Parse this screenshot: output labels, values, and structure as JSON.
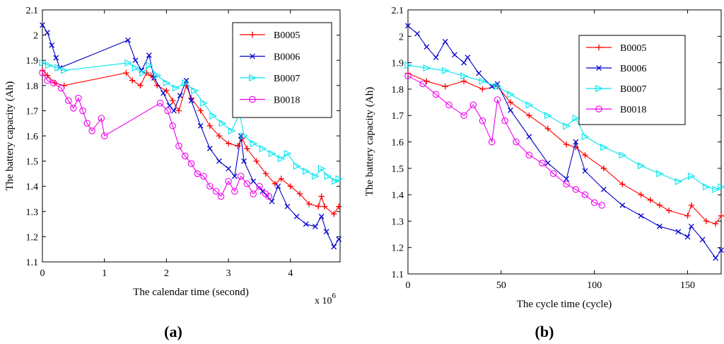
{
  "chart_data": [
    {
      "id": "a",
      "type": "line",
      "panel_label": "a",
      "xlabel": "The calendar time (second)",
      "ylabel": "The battery capacity (Ah)",
      "x_multiplier": "x 10",
      "x_multiplier_exp": "6",
      "xlim": [
        0,
        4.8
      ],
      "ylim": [
        1.1,
        2.1
      ],
      "xticks": [
        "0",
        "1",
        "2",
        "3",
        "4"
      ],
      "xtick_values": [
        0,
        1,
        2,
        3,
        4
      ],
      "yticks": [
        "1.1",
        "1.2",
        "1.3",
        "1.4",
        "1.5",
        "1.6",
        "1.7",
        "1.8",
        "1.9",
        "2",
        "2.1"
      ],
      "ytick_values": [
        1.1,
        1.2,
        1.3,
        1.4,
        1.5,
        1.6,
        1.7,
        1.8,
        1.9,
        2.0,
        2.1
      ],
      "legend_position": "top-right",
      "series": [
        {
          "name": "B0005",
          "color": "#ff0000",
          "marker": "plus",
          "points": [
            [
              0,
              1.86
            ],
            [
              0.08,
              1.84
            ],
            [
              0.2,
              1.81
            ],
            [
              0.35,
              1.8
            ],
            [
              1.35,
              1.85
            ],
            [
              1.45,
              1.82
            ],
            [
              1.58,
              1.8
            ],
            [
              1.68,
              1.85
            ],
            [
              1.75,
              1.84
            ],
            [
              1.85,
              1.8
            ],
            [
              2.0,
              1.78
            ],
            [
              2.1,
              1.74
            ],
            [
              2.2,
              1.7
            ],
            [
              2.32,
              1.8
            ],
            [
              2.4,
              1.75
            ],
            [
              2.55,
              1.7
            ],
            [
              2.7,
              1.64
            ],
            [
              2.85,
              1.6
            ],
            [
              3.0,
              1.57
            ],
            [
              3.15,
              1.56
            ],
            [
              3.22,
              1.59
            ],
            [
              3.3,
              1.55
            ],
            [
              3.45,
              1.5
            ],
            [
              3.6,
              1.45
            ],
            [
              3.75,
              1.41
            ],
            [
              3.85,
              1.43
            ],
            [
              4.0,
              1.4
            ],
            [
              4.15,
              1.37
            ],
            [
              4.3,
              1.33
            ],
            [
              4.45,
              1.32
            ],
            [
              4.5,
              1.36
            ],
            [
              4.55,
              1.32
            ],
            [
              4.7,
              1.29
            ],
            [
              4.78,
              1.32
            ]
          ]
        },
        {
          "name": "B0006",
          "color": "#0000cc",
          "marker": "x",
          "points": [
            [
              0,
              2.04
            ],
            [
              0.08,
              2.01
            ],
            [
              0.15,
              1.96
            ],
            [
              0.22,
              1.91
            ],
            [
              0.28,
              1.87
            ],
            [
              1.38,
              1.98
            ],
            [
              1.5,
              1.9
            ],
            [
              1.6,
              1.86
            ],
            [
              1.72,
              1.92
            ],
            [
              1.8,
              1.83
            ],
            [
              1.95,
              1.77
            ],
            [
              2.05,
              1.72
            ],
            [
              2.12,
              1.7
            ],
            [
              2.22,
              1.76
            ],
            [
              2.32,
              1.82
            ],
            [
              2.4,
              1.74
            ],
            [
              2.55,
              1.64
            ],
            [
              2.7,
              1.55
            ],
            [
              2.85,
              1.5
            ],
            [
              3.0,
              1.47
            ],
            [
              3.1,
              1.44
            ],
            [
              3.2,
              1.6
            ],
            [
              3.25,
              1.5
            ],
            [
              3.4,
              1.42
            ],
            [
              3.55,
              1.38
            ],
            [
              3.7,
              1.34
            ],
            [
              3.8,
              1.4
            ],
            [
              3.95,
              1.32
            ],
            [
              4.1,
              1.28
            ],
            [
              4.25,
              1.25
            ],
            [
              4.4,
              1.24
            ],
            [
              4.5,
              1.28
            ],
            [
              4.58,
              1.22
            ],
            [
              4.7,
              1.16
            ],
            [
              4.78,
              1.19
            ]
          ]
        },
        {
          "name": "B0007",
          "color": "#00e5ee",
          "marker": "triangle",
          "points": [
            [
              0,
              1.89
            ],
            [
              0.1,
              1.88
            ],
            [
              0.25,
              1.87
            ],
            [
              0.35,
              1.86
            ],
            [
              1.38,
              1.89
            ],
            [
              1.5,
              1.87
            ],
            [
              1.62,
              1.85
            ],
            [
              1.72,
              1.88
            ],
            [
              1.85,
              1.84
            ],
            [
              2.0,
              1.81
            ],
            [
              2.15,
              1.79
            ],
            [
              2.3,
              1.81
            ],
            [
              2.45,
              1.78
            ],
            [
              2.6,
              1.73
            ],
            [
              2.75,
              1.68
            ],
            [
              2.9,
              1.65
            ],
            [
              3.05,
              1.62
            ],
            [
              3.18,
              1.69
            ],
            [
              3.25,
              1.6
            ],
            [
              3.4,
              1.57
            ],
            [
              3.55,
              1.55
            ],
            [
              3.7,
              1.53
            ],
            [
              3.85,
              1.51
            ],
            [
              3.95,
              1.53
            ],
            [
              4.1,
              1.48
            ],
            [
              4.25,
              1.46
            ],
            [
              4.4,
              1.44
            ],
            [
              4.5,
              1.47
            ],
            [
              4.6,
              1.44
            ],
            [
              4.72,
              1.42
            ],
            [
              4.78,
              1.43
            ]
          ]
        },
        {
          "name": "B0018",
          "color": "#ee00ee",
          "marker": "circle",
          "points": [
            [
              0,
              1.85
            ],
            [
              0.08,
              1.82
            ],
            [
              0.18,
              1.81
            ],
            [
              0.3,
              1.79
            ],
            [
              0.42,
              1.74
            ],
            [
              0.5,
              1.71
            ],
            [
              0.58,
              1.75
            ],
            [
              0.65,
              1.7
            ],
            [
              0.72,
              1.65
            ],
            [
              0.8,
              1.62
            ],
            [
              0.95,
              1.67
            ],
            [
              1.0,
              1.6
            ],
            [
              1.9,
              1.73
            ],
            [
              2.02,
              1.7
            ],
            [
              2.1,
              1.64
            ],
            [
              2.2,
              1.56
            ],
            [
              2.3,
              1.52
            ],
            [
              2.4,
              1.49
            ],
            [
              2.5,
              1.45
            ],
            [
              2.6,
              1.44
            ],
            [
              2.7,
              1.4
            ],
            [
              2.8,
              1.38
            ],
            [
              2.88,
              1.36
            ],
            [
              3.0,
              1.42
            ],
            [
              3.1,
              1.38
            ],
            [
              3.2,
              1.44
            ],
            [
              3.3,
              1.41
            ],
            [
              3.4,
              1.37
            ],
            [
              3.5,
              1.4
            ],
            [
              3.6,
              1.37
            ],
            [
              3.65,
              1.36
            ]
          ]
        }
      ]
    },
    {
      "id": "b",
      "type": "line",
      "panel_label": "b",
      "xlabel": "The cycle time (cycle)",
      "ylabel": "The battery capacity (Ah)",
      "xlim": [
        0,
        168
      ],
      "ylim": [
        1.1,
        2.1
      ],
      "xticks": [
        "0",
        "50",
        "100",
        "150"
      ],
      "xtick_values": [
        0,
        50,
        100,
        150
      ],
      "yticks": [
        "1.1",
        "1.2",
        "1.3",
        "1.4",
        "1.5",
        "1.6",
        "1.7",
        "1.8",
        "1.9",
        "2",
        "2.1"
      ],
      "ytick_values": [
        1.1,
        1.2,
        1.3,
        1.4,
        1.5,
        1.6,
        1.7,
        1.8,
        1.9,
        2.0,
        2.1
      ],
      "legend_position": "top-right",
      "series": [
        {
          "name": "B0005",
          "color": "#ff0000",
          "marker": "plus",
          "points": [
            [
              0,
              1.86
            ],
            [
              10,
              1.83
            ],
            [
              20,
              1.81
            ],
            [
              30,
              1.83
            ],
            [
              40,
              1.8
            ],
            [
              48,
              1.81
            ],
            [
              55,
              1.75
            ],
            [
              65,
              1.7
            ],
            [
              75,
              1.65
            ],
            [
              85,
              1.59
            ],
            [
              90,
              1.58
            ],
            [
              95,
              1.55
            ],
            [
              105,
              1.5
            ],
            [
              115,
              1.44
            ],
            [
              125,
              1.4
            ],
            [
              130,
              1.38
            ],
            [
              135,
              1.36
            ],
            [
              140,
              1.34
            ],
            [
              150,
              1.32
            ],
            [
              152,
              1.36
            ],
            [
              160,
              1.3
            ],
            [
              165,
              1.29
            ],
            [
              168,
              1.32
            ]
          ]
        },
        {
          "name": "B0006",
          "color": "#0000cc",
          "marker": "x",
          "points": [
            [
              0,
              2.04
            ],
            [
              5,
              2.01
            ],
            [
              10,
              1.96
            ],
            [
              15,
              1.92
            ],
            [
              20,
              1.98
            ],
            [
              25,
              1.93
            ],
            [
              30,
              1.9
            ],
            [
              32,
              1.92
            ],
            [
              38,
              1.86
            ],
            [
              45,
              1.81
            ],
            [
              48,
              1.82
            ],
            [
              55,
              1.72
            ],
            [
              65,
              1.62
            ],
            [
              75,
              1.52
            ],
            [
              85,
              1.46
            ],
            [
              90,
              1.6
            ],
            [
              95,
              1.49
            ],
            [
              105,
              1.42
            ],
            [
              115,
              1.36
            ],
            [
              125,
              1.32
            ],
            [
              135,
              1.28
            ],
            [
              145,
              1.26
            ],
            [
              150,
              1.24
            ],
            [
              152,
              1.28
            ],
            [
              158,
              1.23
            ],
            [
              165,
              1.16
            ],
            [
              168,
              1.19
            ]
          ]
        },
        {
          "name": "B0007",
          "color": "#00e5ee",
          "marker": "triangle",
          "points": [
            [
              0,
              1.89
            ],
            [
              10,
              1.88
            ],
            [
              20,
              1.87
            ],
            [
              30,
              1.85
            ],
            [
              40,
              1.83
            ],
            [
              48,
              1.81
            ],
            [
              55,
              1.78
            ],
            [
              65,
              1.74
            ],
            [
              75,
              1.7
            ],
            [
              85,
              1.66
            ],
            [
              90,
              1.69
            ],
            [
              95,
              1.62
            ],
            [
              105,
              1.58
            ],
            [
              115,
              1.55
            ],
            [
              125,
              1.51
            ],
            [
              135,
              1.48
            ],
            [
              145,
              1.45
            ],
            [
              152,
              1.47
            ],
            [
              160,
              1.43
            ],
            [
              165,
              1.42
            ],
            [
              168,
              1.43
            ]
          ]
        },
        {
          "name": "B0018",
          "color": "#ee00ee",
          "marker": "circle",
          "points": [
            [
              0,
              1.85
            ],
            [
              8,
              1.82
            ],
            [
              15,
              1.78
            ],
            [
              22,
              1.74
            ],
            [
              30,
              1.7
            ],
            [
              35,
              1.74
            ],
            [
              40,
              1.68
            ],
            [
              45,
              1.6
            ],
            [
              48,
              1.76
            ],
            [
              52,
              1.68
            ],
            [
              58,
              1.6
            ],
            [
              65,
              1.55
            ],
            [
              72,
              1.52
            ],
            [
              78,
              1.48
            ],
            [
              85,
              1.44
            ],
            [
              90,
              1.42
            ],
            [
              95,
              1.4
            ],
            [
              100,
              1.37
            ],
            [
              104,
              1.36
            ]
          ]
        }
      ]
    }
  ]
}
